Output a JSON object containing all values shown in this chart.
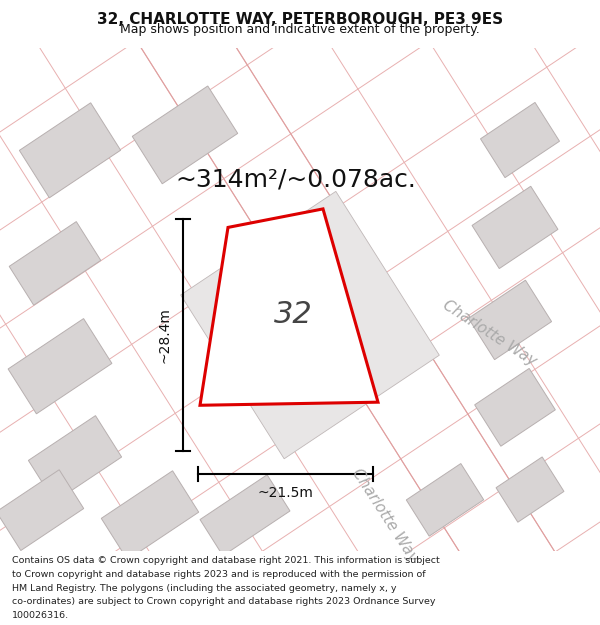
{
  "title_line1": "32, CHARLOTTE WAY, PETERBOROUGH, PE3 9ES",
  "title_line2": "Map shows position and indicative extent of the property.",
  "area_text": "~314m²/~0.078ac.",
  "property_number": "32",
  "dim_height": "~28.4m",
  "dim_width": "~21.5m",
  "street_label_right": "Charlotte Way",
  "street_label_bottom": "Charlotte Way",
  "footer_lines": [
    "Contains OS data © Crown copyright and database right 2021. This information is subject",
    "to Crown copyright and database rights 2023 and is reproduced with the permission of",
    "HM Land Registry. The polygons (including the associated geometry, namely x, y",
    "co-ordinates) are subject to Crown copyright and database rights 2023 Ordnance Survey",
    "100026316."
  ],
  "map_bg": "#f7f5f5",
  "plot_fill": "#ffffff",
  "plot_outline": "#dd0000",
  "parcel_fill": "#e8e6e6",
  "parcel_outline": "#c8c0c0",
  "building_fill": "#d8d4d4",
  "building_outline": "#b8b0b0",
  "pink_line": "#e8b0b0",
  "dim_color": "#111111",
  "text_color": "#111111",
  "label_color": "#aaaaaa",
  "title_fontsize": 11,
  "subtitle_fontsize": 9,
  "area_fontsize": 18,
  "prop_num_fontsize": 22,
  "dim_fontsize": 10,
  "street_fontsize": 11,
  "footer_fontsize": 6.8
}
